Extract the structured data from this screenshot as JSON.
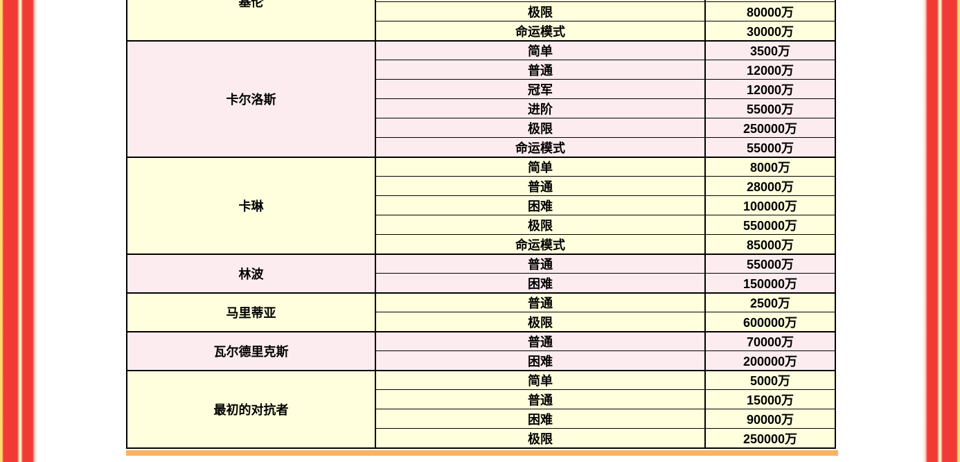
{
  "page": {
    "background": "#ffffff",
    "decorations": {
      "stripe_yellow": "#ffdb72",
      "stripe_red": "#f23a34",
      "stripe_cream": "#fff8ce",
      "stripe_pink": "#ffd2ca",
      "bottom_bar_color": "#fbb261"
    }
  },
  "table": {
    "row_tone_colors": {
      "yellow": "#ffffdd",
      "pink": "#fdecef"
    },
    "border_color": "#000000",
    "sections": [
      {
        "boss": "基伦",
        "tone": "yellow",
        "rows": [
          {
            "mode": "",
            "value": ""
          },
          {
            "mode": "",
            "value": ""
          },
          {
            "mode": "极限",
            "value": "80000万"
          },
          {
            "mode": "命运模式",
            "value": "30000万"
          }
        ]
      },
      {
        "boss": "卡尔洛斯",
        "tone": "pink",
        "rows": [
          {
            "mode": "简单",
            "value": "3500万"
          },
          {
            "mode": "普通",
            "value": "12000万"
          },
          {
            "mode": "冠军",
            "value": "12000万"
          },
          {
            "mode": "进阶",
            "value": "55000万"
          },
          {
            "mode": "极限",
            "value": "250000万"
          },
          {
            "mode": "命运模式",
            "value": "55000万"
          }
        ]
      },
      {
        "boss": "卡琳",
        "tone": "yellow",
        "rows": [
          {
            "mode": "简单",
            "value": "8000万"
          },
          {
            "mode": "普通",
            "value": "28000万"
          },
          {
            "mode": "困难",
            "value": "100000万"
          },
          {
            "mode": "极限",
            "value": "550000万"
          },
          {
            "mode": "命运模式",
            "value": "85000万"
          }
        ]
      },
      {
        "boss": "林波",
        "tone": "pink",
        "rows": [
          {
            "mode": "普通",
            "value": "55000万"
          },
          {
            "mode": "困难",
            "value": "150000万"
          }
        ]
      },
      {
        "boss": "马里蒂亚",
        "tone": "yellow",
        "rows": [
          {
            "mode": "普通",
            "value": "2500万"
          },
          {
            "mode": "极限",
            "value": "600000万"
          }
        ]
      },
      {
        "boss": "瓦尔德里克斯",
        "tone": "pink",
        "rows": [
          {
            "mode": "普通",
            "value": "70000万"
          },
          {
            "mode": "困难",
            "value": "200000万"
          }
        ]
      },
      {
        "boss": "最初的对抗者",
        "tone": "yellow",
        "rows": [
          {
            "mode": "简单",
            "value": "5000万"
          },
          {
            "mode": "普通",
            "value": "15000万"
          },
          {
            "mode": "困难",
            "value": "90000万"
          },
          {
            "mode": "极限",
            "value": "250000万"
          }
        ]
      }
    ]
  }
}
